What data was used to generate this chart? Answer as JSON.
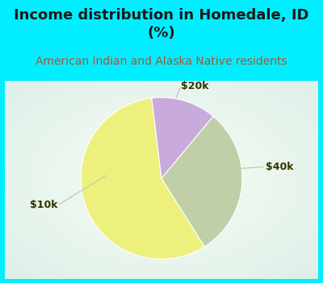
{
  "title": "Income distribution in Homedale, ID\n(%)",
  "subtitle": "American Indian and Alaska Native residents",
  "slices": [
    {
      "label": "$10k",
      "value": 57,
      "color": "#eef07e"
    },
    {
      "label": "$40k",
      "value": 30,
      "color": "#c0cfa8"
    },
    {
      "label": "$20k",
      "value": 13,
      "color": "#c8aadc"
    }
  ],
  "title_color": "#1a1a1a",
  "subtitle_color": "#aa5533",
  "bg_cyan": "#00eeff",
  "bg_chart_center": "#e8f5ee",
  "bg_chart_edge": "#c8e8d8",
  "title_fontsize": 13,
  "subtitle_fontsize": 10,
  "label_fontsize": 9,
  "startangle": 97,
  "label_color": "#333300",
  "line_color": "#bbccaa",
  "wedge_edge_color": "#ffffff",
  "wedge_linewidth": 0.8,
  "cyan_border": 6
}
